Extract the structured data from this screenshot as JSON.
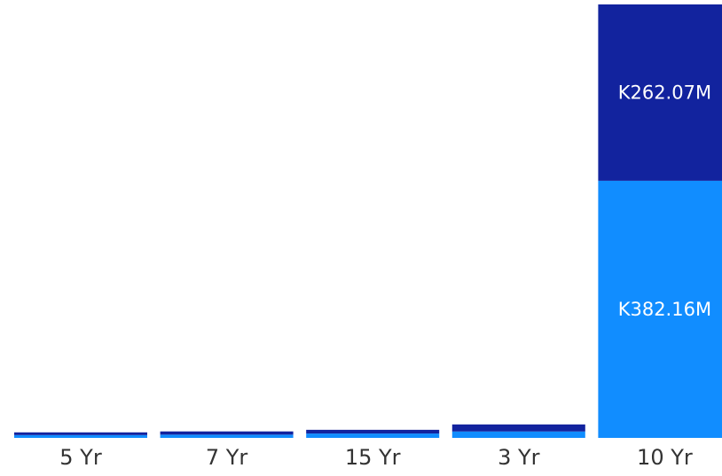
{
  "chart_data": {
    "type": "bar",
    "stacked": true,
    "categories": [
      "5 Yr",
      "7 Yr",
      "15 Yr",
      "3 Yr",
      "10 Yr"
    ],
    "series": [
      {
        "values": [
          4.2,
          4.8,
          6.5,
          9.5,
          382.16
        ],
        "color": "#118DFF",
        "data_labels": [
          "",
          "",
          "",
          "",
          "K382.16M"
        ]
      },
      {
        "values": [
          4.0,
          4.8,
          5.5,
          10.5,
          262.07
        ],
        "color": "#12239E",
        "data_labels": [
          "",
          "",
          "",
          "",
          "K262.07M"
        ]
      }
    ],
    "ylim": [
      0,
      644.23
    ],
    "grid": false,
    "legend": "none",
    "xlabel": "",
    "ylabel": ""
  }
}
